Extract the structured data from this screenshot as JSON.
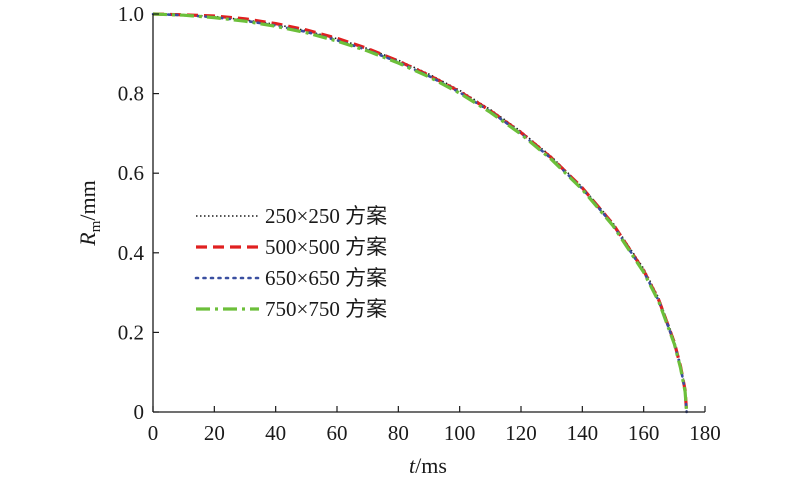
{
  "chart_data": {
    "type": "line",
    "xlabel": {
      "var": "t",
      "unit": "/ms"
    },
    "ylabel": {
      "var": "R",
      "sub": "m",
      "unit": "/mm"
    },
    "xlim": [
      0,
      180
    ],
    "ylim": [
      0,
      1.0
    ],
    "xticks": [
      0,
      20,
      40,
      60,
      80,
      100,
      120,
      140,
      160,
      180
    ],
    "yticks": [
      0,
      0.2,
      0.4,
      0.6,
      0.8,
      1.0
    ],
    "xtick_labels": [
      "0",
      "20",
      "40",
      "60",
      "80",
      "100",
      "120",
      "140",
      "160",
      "180"
    ],
    "ytick_labels": [
      "0",
      "0.2",
      "0.4",
      "0.6",
      "0.8",
      "1.0"
    ],
    "grid": false,
    "legend_position": "center-left",
    "series": [
      {
        "name": "250×250 方案",
        "color": "#1a1a1a",
        "style": "dotted",
        "x": [
          0,
          10,
          20,
          30,
          40,
          50,
          60,
          70,
          80,
          90,
          100,
          110,
          120,
          130,
          140,
          150,
          160,
          165,
          170,
          172,
          173.5,
          174
        ],
        "y": [
          1.0,
          0.998,
          0.994,
          0.985,
          0.974,
          0.958,
          0.938,
          0.913,
          0.884,
          0.849,
          0.808,
          0.76,
          0.705,
          0.641,
          0.565,
          0.475,
          0.36,
          0.285,
          0.18,
          0.12,
          0.06,
          0.0
        ]
      },
      {
        "name": "500×500 方案",
        "color": "#e02020",
        "style": "dashed",
        "x": [
          0,
          10,
          20,
          30,
          40,
          50,
          60,
          70,
          80,
          90,
          100,
          110,
          120,
          130,
          140,
          150,
          160,
          165,
          170,
          172,
          173.5,
          174
        ],
        "y": [
          1.0,
          0.998,
          0.995,
          0.988,
          0.976,
          0.96,
          0.939,
          0.913,
          0.882,
          0.846,
          0.805,
          0.757,
          0.702,
          0.638,
          0.563,
          0.472,
          0.355,
          0.28,
          0.175,
          0.115,
          0.055,
          0.0
        ]
      },
      {
        "name": "650×650 方案",
        "color": "#3a4fa0",
        "style": "dotted-sparse",
        "x": [
          0,
          10,
          20,
          30,
          40,
          50,
          60,
          70,
          80,
          90,
          100,
          110,
          120,
          130,
          140,
          150,
          160,
          165,
          170,
          172,
          173.5,
          174
        ],
        "y": [
          1.0,
          0.997,
          0.992,
          0.983,
          0.971,
          0.955,
          0.934,
          0.909,
          0.879,
          0.844,
          0.803,
          0.755,
          0.7,
          0.636,
          0.561,
          0.47,
          0.353,
          0.278,
          0.173,
          0.113,
          0.053,
          0.0
        ]
      },
      {
        "name": "750×750 方案",
        "color": "#6cbf3a",
        "style": "dashdot",
        "x": [
          0,
          10,
          20,
          30,
          40,
          50,
          60,
          70,
          80,
          90,
          100,
          110,
          120,
          130,
          140,
          150,
          160,
          165,
          170,
          172,
          173.5,
          174
        ],
        "y": [
          1.0,
          0.997,
          0.991,
          0.982,
          0.969,
          0.953,
          0.932,
          0.907,
          0.877,
          0.842,
          0.801,
          0.753,
          0.698,
          0.634,
          0.559,
          0.468,
          0.351,
          0.276,
          0.171,
          0.111,
          0.051,
          0.0
        ]
      }
    ]
  }
}
